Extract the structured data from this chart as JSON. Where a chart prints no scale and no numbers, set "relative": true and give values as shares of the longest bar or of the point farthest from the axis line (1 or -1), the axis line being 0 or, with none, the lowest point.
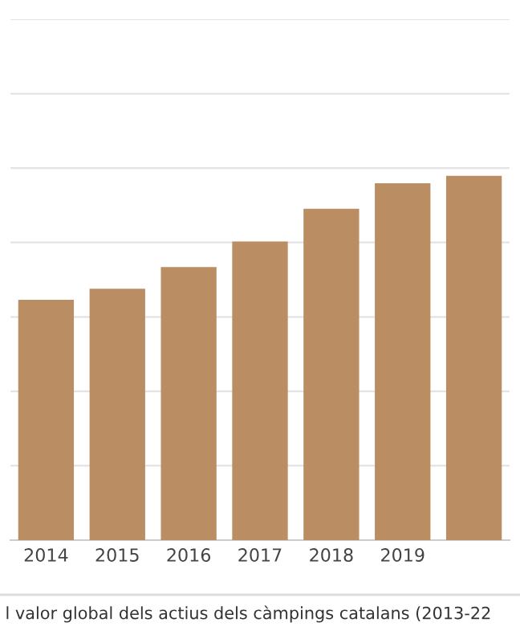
{
  "chart_data": {
    "type": "bar",
    "relative": true,
    "categories": [
      "2014",
      "2015",
      "2016",
      "2017",
      "2018",
      "2019",
      null
    ],
    "values": [
      0.66,
      0.69,
      0.75,
      0.82,
      0.91,
      0.98,
      1.0
    ],
    "color": "#bb8d63",
    "grid": "y",
    "legend": false,
    "annotations": [
      "l valor global dels actius dels càmpings catalans (2013-22"
    ]
  }
}
